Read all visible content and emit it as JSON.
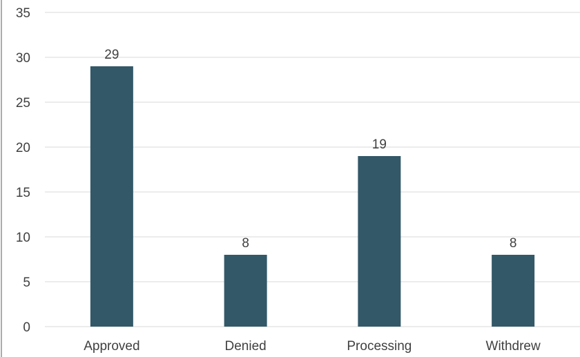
{
  "chart_data": {
    "type": "bar",
    "title": "",
    "xlabel": "",
    "ylabel": "",
    "categories": [
      "Approved",
      "Denied",
      "Processing",
      "Withdrew"
    ],
    "values": [
      29,
      8,
      19,
      8
    ],
    "data_labels": [
      "29",
      "8",
      "19",
      "8"
    ],
    "ylim": [
      0,
      35
    ],
    "yticks": [
      0,
      5,
      10,
      15,
      20,
      25,
      30,
      35
    ],
    "grid": true,
    "legend": "none",
    "colors": {
      "bar": "#335868",
      "grid": "#d9d9d9",
      "axis": "#595959",
      "text": "#404040"
    }
  }
}
